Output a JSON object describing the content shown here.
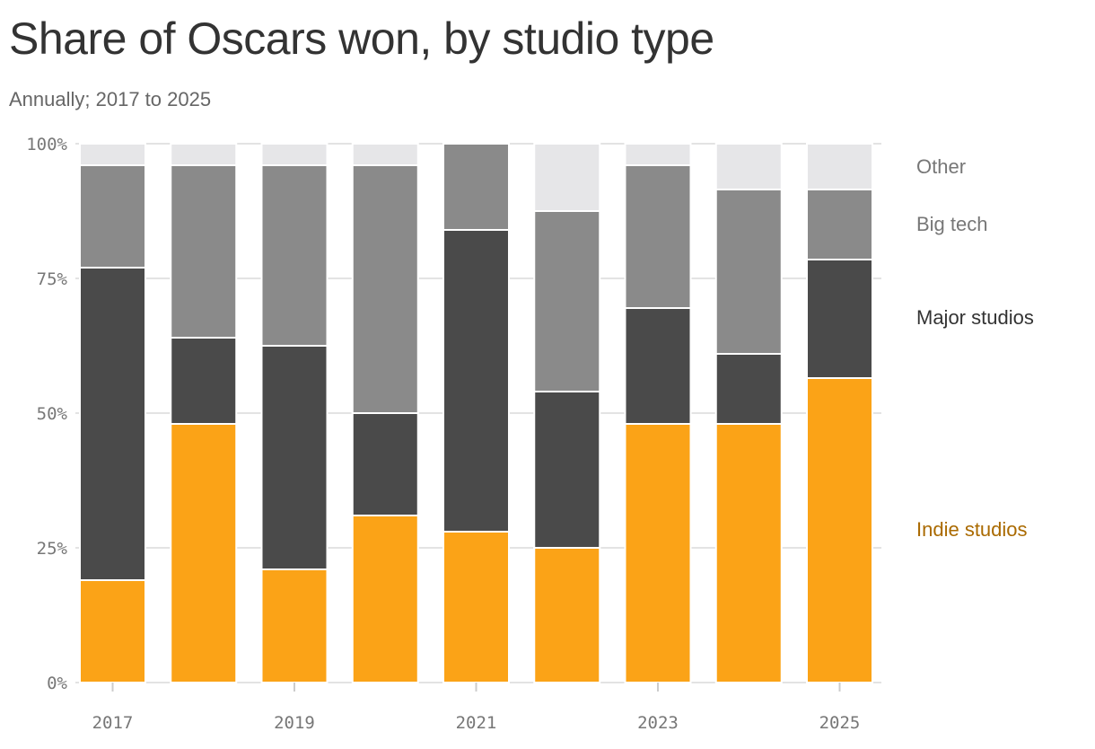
{
  "title": "Share of Oscars won, by studio type",
  "subtitle": "Annually; 2017 to 2025",
  "colors": {
    "indie": "#FBA317",
    "major": "#4A4A4A",
    "bigtech": "#8A8A8A",
    "other": "#E6E6E8",
    "indie_label": "#AA6A00",
    "major_label": "#333333",
    "bigtech_label": "#777777",
    "other_label": "#777777",
    "grid": "#E3E3E3",
    "tick": "#777777"
  },
  "chart_data": {
    "type": "bar",
    "stacked": true,
    "categories": [
      "2017",
      "2018",
      "2019",
      "2020",
      "2021",
      "2022",
      "2023",
      "2024",
      "2025"
    ],
    "x_tick_labels": [
      "2017",
      "2019",
      "2021",
      "2023",
      "2025"
    ],
    "y_tick_labels": [
      "0%",
      "25%",
      "50%",
      "75%",
      "100%"
    ],
    "ylim": [
      0,
      100
    ],
    "grid": true,
    "legend_placement": "right",
    "series": [
      {
        "name": "Indie studios",
        "key": "indie",
        "values": [
          19,
          48,
          21,
          31,
          28,
          25,
          48,
          48,
          56.5
        ]
      },
      {
        "name": "Major studios",
        "key": "major",
        "values": [
          58,
          16,
          41.5,
          19,
          56,
          29,
          21.5,
          13,
          22
        ]
      },
      {
        "name": "Big tech",
        "key": "bigtech",
        "values": [
          19,
          32,
          33.5,
          46,
          16,
          33.5,
          26.5,
          30.5,
          13
        ]
      },
      {
        "name": "Other",
        "key": "other",
        "values": [
          4,
          4,
          4,
          4,
          0,
          12.5,
          4,
          8.5,
          8.5
        ]
      }
    ]
  }
}
